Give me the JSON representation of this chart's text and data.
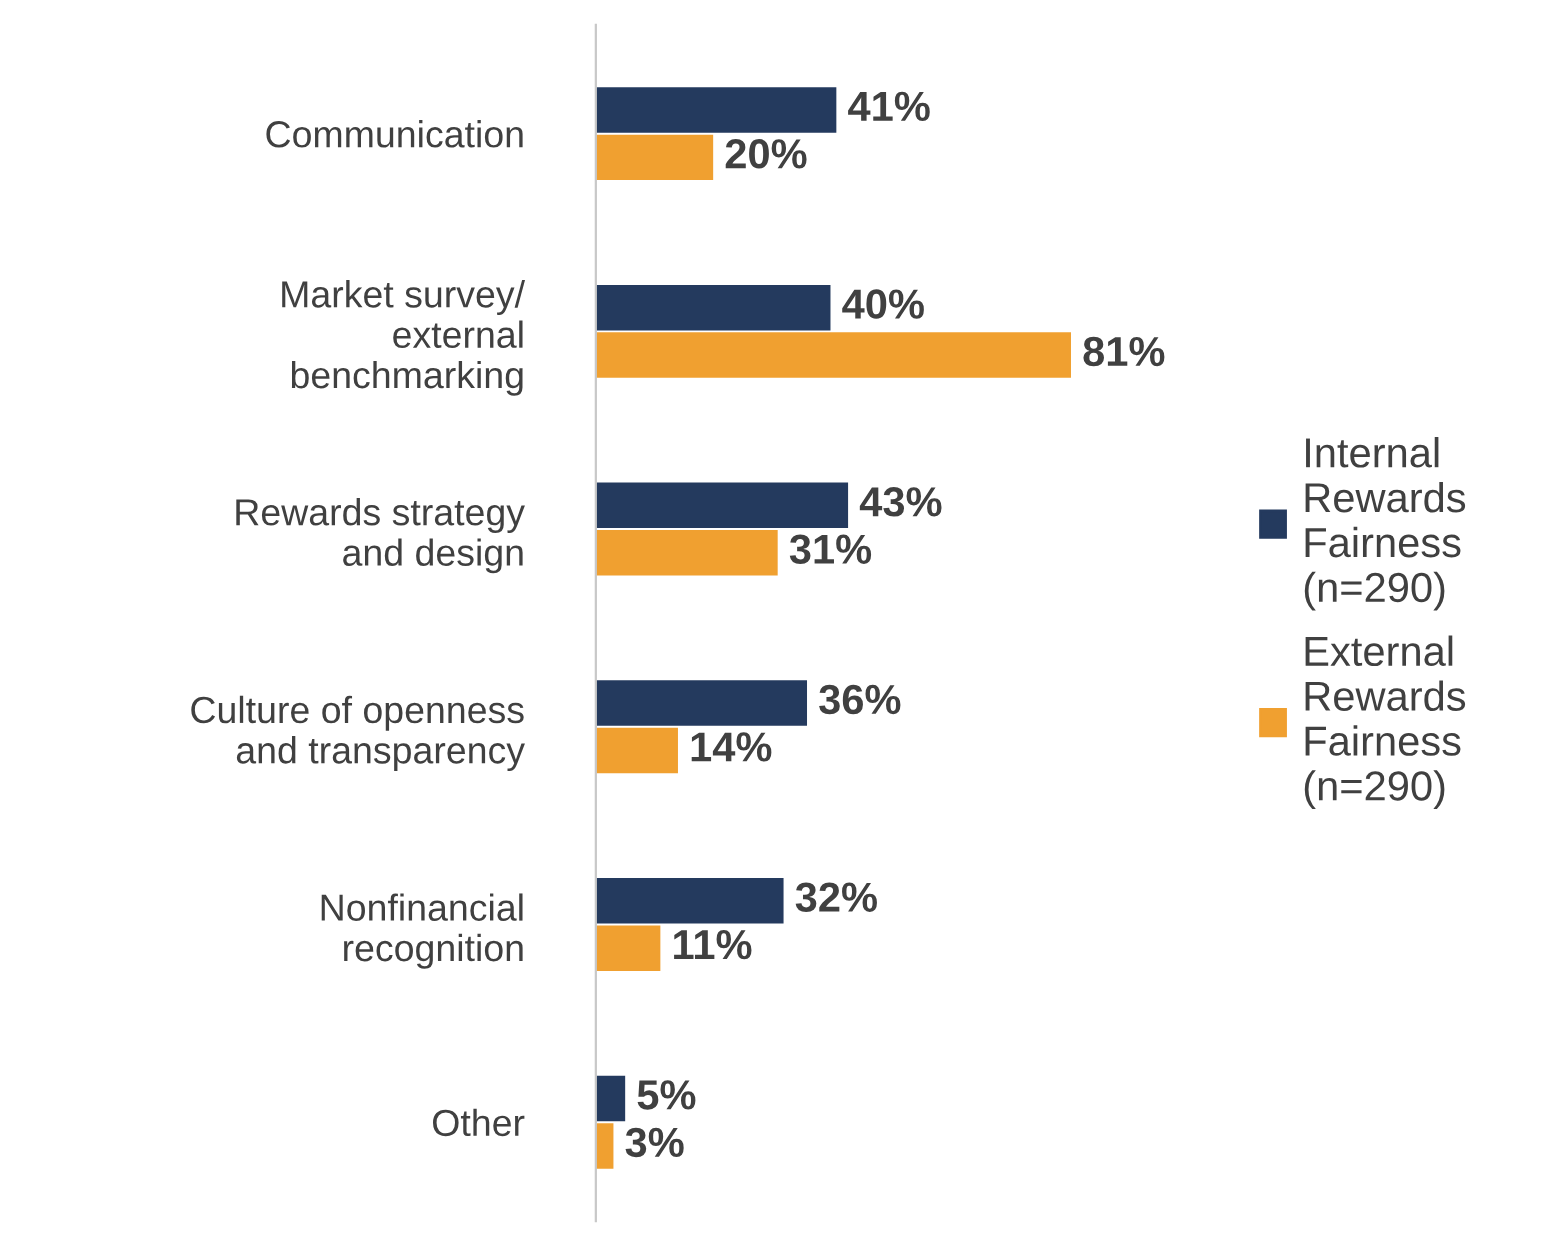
{
  "chart_data": {
    "type": "bar",
    "orientation": "horizontal",
    "categories": [
      "Communication",
      "Market survey/\nexternal\nbenchmarking",
      "Rewards strategy\nand design",
      "Culture of openness\nand transparency",
      "Nonfinancial\nrecognition",
      "Other"
    ],
    "series": [
      {
        "name": "Internal Rewards Fairness (n=290)",
        "color": "#243a5e",
        "values": [
          41,
          40,
          43,
          36,
          32,
          5
        ],
        "value_labels": [
          "41%",
          "40%",
          "43%",
          "36%",
          "32%",
          "5%"
        ]
      },
      {
        "name": "External Rewards Fairness (n=290)",
        "color": "#f0a030",
        "values": [
          20,
          81,
          31,
          14,
          11,
          3
        ],
        "value_labels": [
          "20%",
          "81%",
          "31%",
          "14%",
          "11%",
          "3%"
        ]
      }
    ],
    "legend": "right",
    "grid": false,
    "tick_labels": "y"
  }
}
